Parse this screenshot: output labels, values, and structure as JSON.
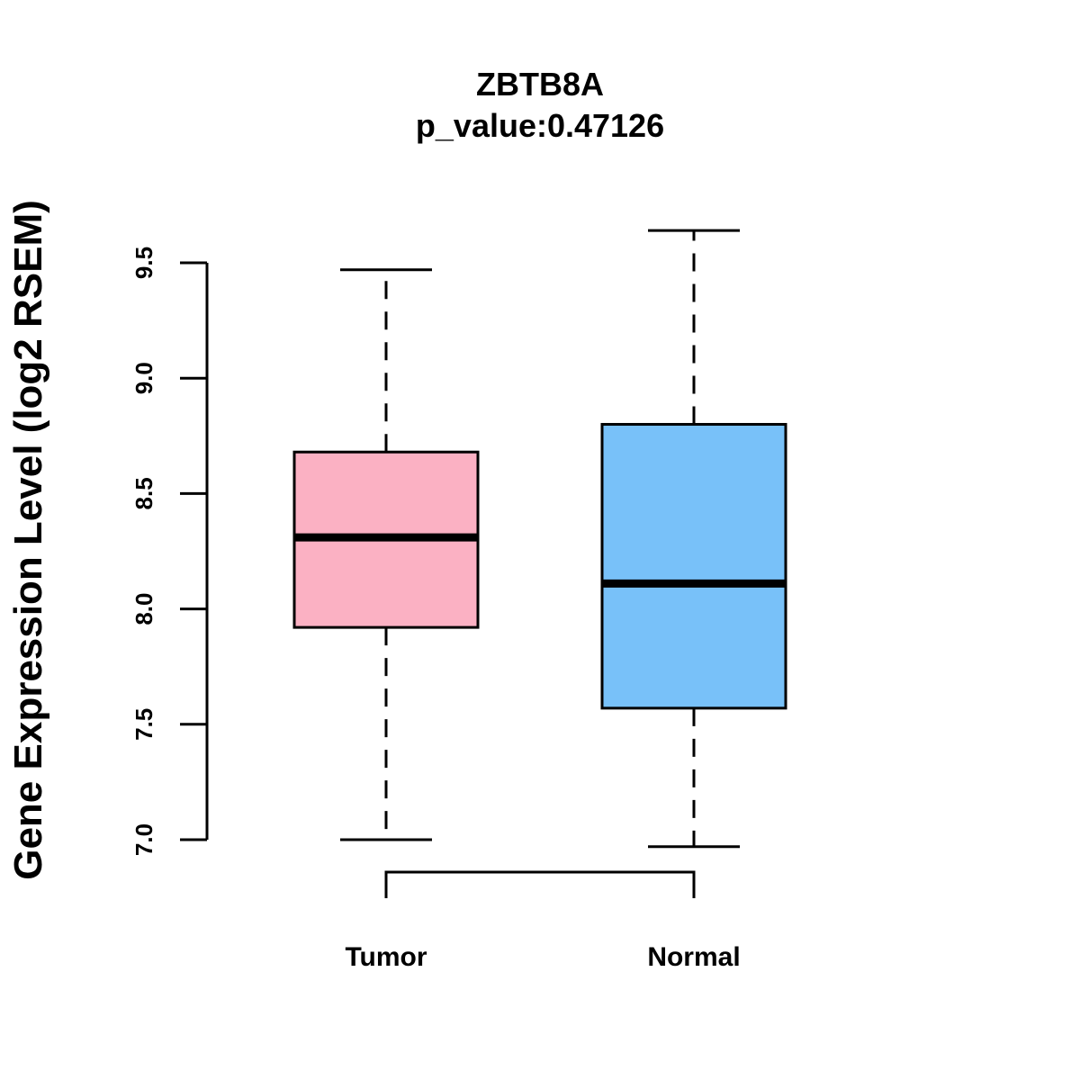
{
  "chart_data": {
    "type": "boxplot",
    "title": "ZBTB8A",
    "subtitle": "p_value:0.47126",
    "xlabel": "",
    "ylabel": "Gene Expression Level (log2 RSEM)",
    "ylim": [
      7.0,
      9.5
    ],
    "yticks": [
      "7.0",
      "7.5",
      "8.0",
      "8.5",
      "9.0",
      "9.5"
    ],
    "categories": [
      "Tumor",
      "Normal"
    ],
    "series": [
      {
        "name": "Tumor",
        "color": "#FBB1C3",
        "whisker_low": 7.0,
        "q1": 7.92,
        "median": 8.31,
        "q3": 8.68,
        "whisker_high": 9.47
      },
      {
        "name": "Normal",
        "color": "#78C1F9",
        "whisker_low": 6.97,
        "q1": 7.57,
        "median": 8.11,
        "q3": 8.8,
        "whisker_high": 9.64
      }
    ],
    "grid": false,
    "legend": "none"
  }
}
